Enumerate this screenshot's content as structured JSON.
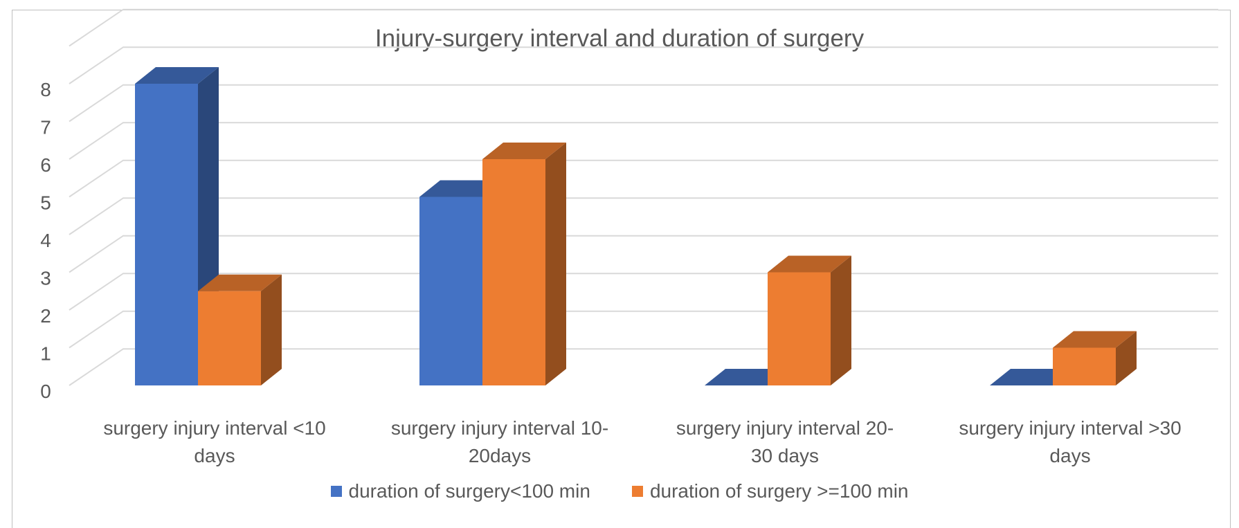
{
  "chart_data": {
    "type": "bar",
    "title": "Injury-surgery interval and duration of surgery",
    "categories": [
      [
        "surgery injury interval <10",
        "days"
      ],
      [
        "surgery injury interval 10-",
        "20days"
      ],
      [
        "surgery injury interval 20-",
        "30 days"
      ],
      [
        "surgery injury interval >30",
        "days"
      ]
    ],
    "series": [
      {
        "name": "duration of surgery<100 min",
        "values": [
          8,
          5,
          0,
          0
        ],
        "color": "#4472C4"
      },
      {
        "name": "duration of surgery >=100 min",
        "values": [
          2.5,
          6,
          3,
          1
        ],
        "color": "#ED7D31"
      }
    ],
    "yticks": [
      0,
      1,
      2,
      3,
      4,
      5,
      6,
      7,
      8
    ],
    "ylim": [
      0,
      8
    ],
    "grid": true,
    "legend_position": "bottom",
    "style": "3d-column"
  }
}
